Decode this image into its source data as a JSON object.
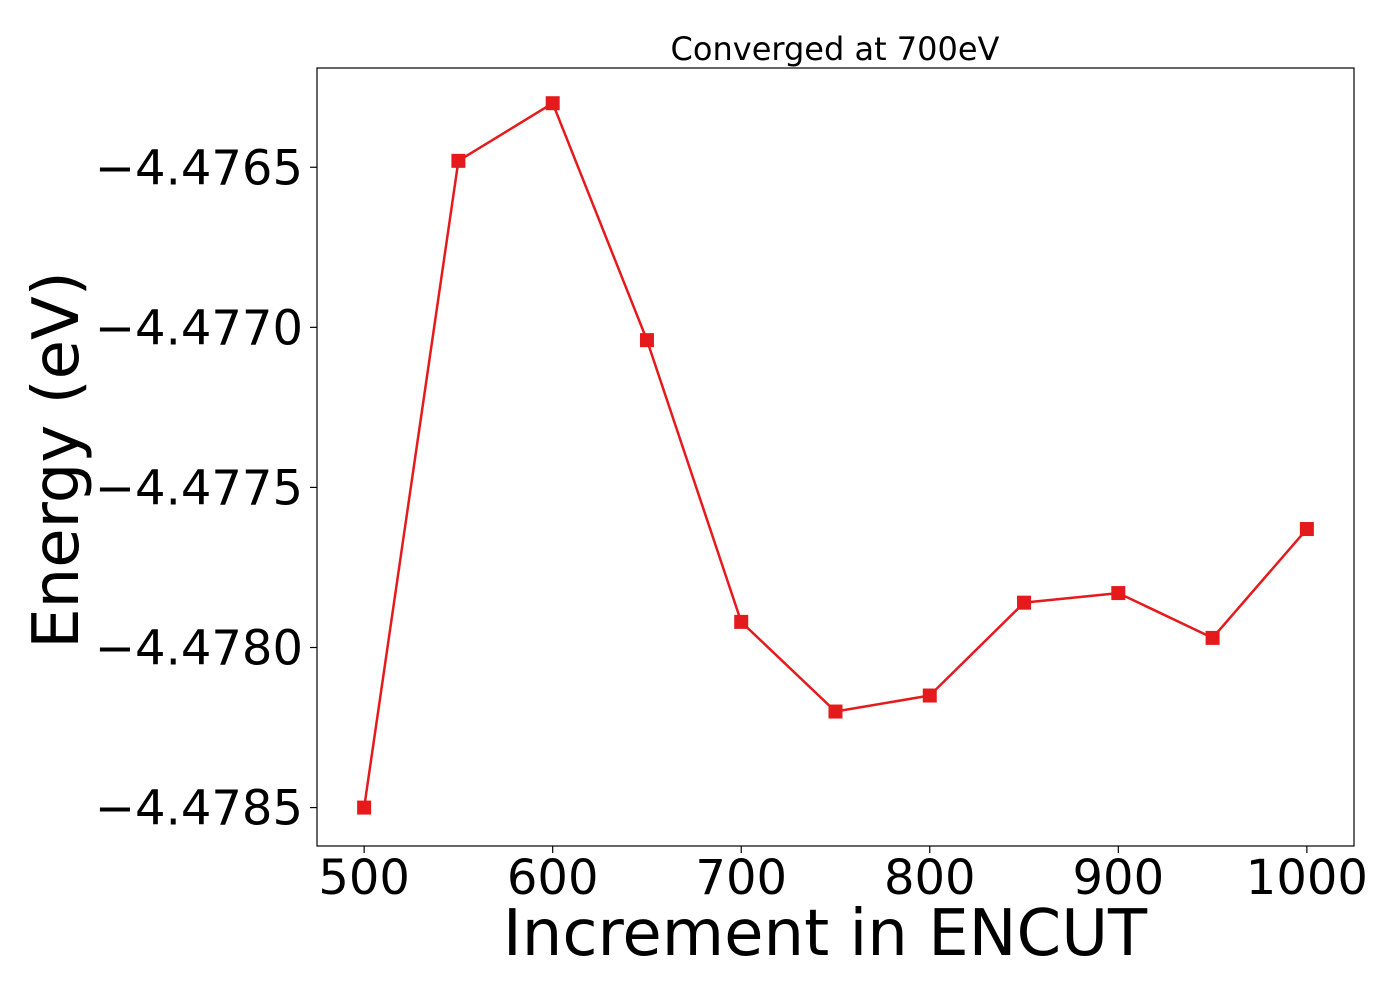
{
  "chart_data": {
    "type": "line",
    "title": "Converged at 700eV",
    "xlabel": "Increment in ENCUT",
    "ylabel": "Energy (eV)",
    "x": [
      500,
      550,
      600,
      650,
      700,
      750,
      800,
      850,
      900,
      950,
      1000
    ],
    "series": [
      {
        "values": [
          -4.4785,
          -4.47648,
          -4.4763,
          -4.47704,
          -4.47792,
          -4.4782,
          -4.47815,
          -4.47786,
          -4.47783,
          -4.47797,
          -4.47763
        ],
        "color": "#e41a1c",
        "marker": "square"
      }
    ],
    "xlim": [
      475,
      1025
    ],
    "ylim": [
      -4.47862,
      -4.47619
    ],
    "xticks": [
      500,
      600,
      700,
      800,
      900,
      1000
    ],
    "xtick_labels": [
      "500",
      "600",
      "700",
      "800",
      "900",
      "1000"
    ],
    "yticks": [
      -4.4765,
      -4.477,
      -4.4775,
      -4.478,
      -4.4785
    ],
    "ytick_labels": [
      "−4.4765",
      "−4.4770",
      "−4.4775",
      "−4.4780",
      "−4.4785"
    ],
    "grid": false,
    "legend": false
  }
}
